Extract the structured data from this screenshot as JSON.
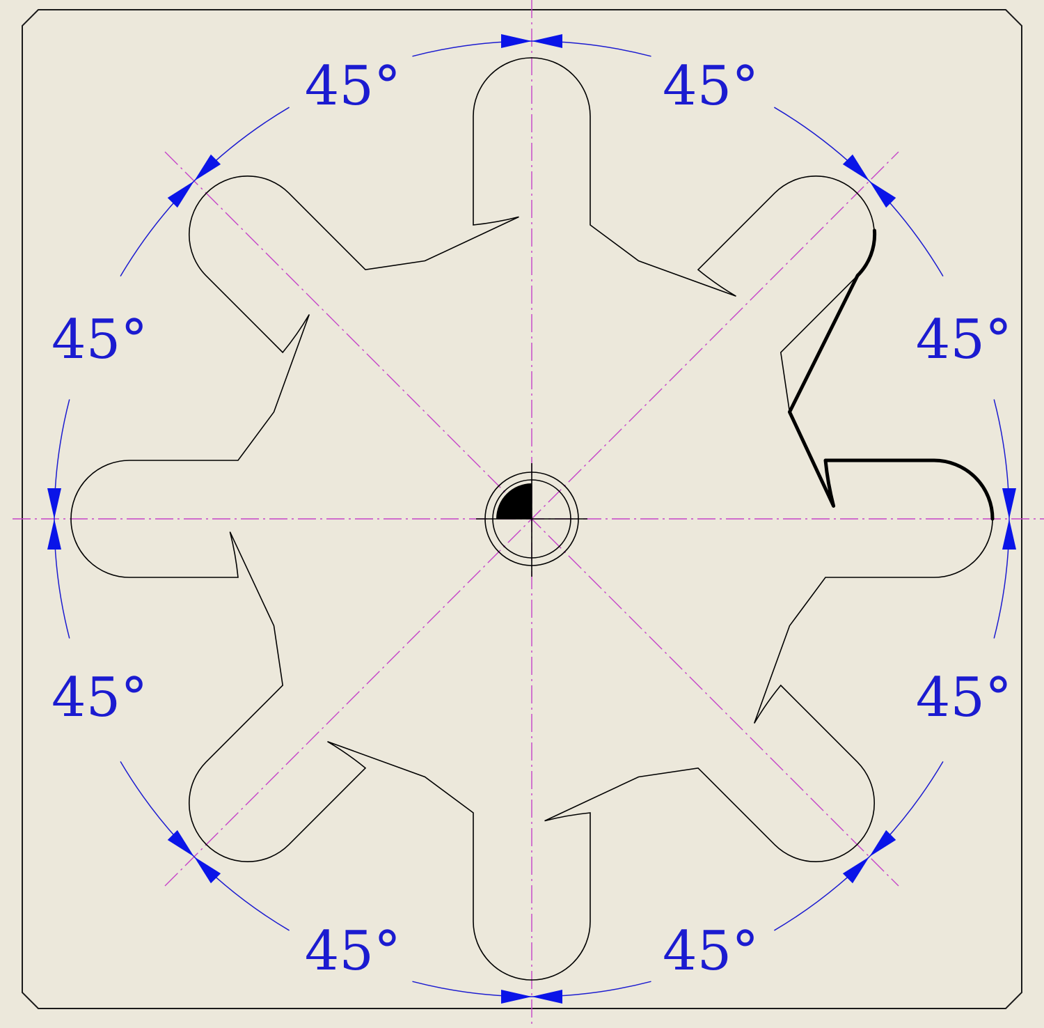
{
  "drawing": {
    "spoke_count": 8,
    "angle_step_deg": 45,
    "dimension_label": "45°"
  },
  "dimensions": [
    {
      "id": "dim-top-right",
      "label": "45°"
    },
    {
      "id": "dim-right-upper",
      "label": "45°"
    },
    {
      "id": "dim-right-lower",
      "label": "45°"
    },
    {
      "id": "dim-bottom-right",
      "label": "45°"
    },
    {
      "id": "dim-bottom-left",
      "label": "45°"
    },
    {
      "id": "dim-left-lower",
      "label": "45°"
    },
    {
      "id": "dim-left-upper",
      "label": "45°"
    },
    {
      "id": "dim-top-left",
      "label": "45°"
    }
  ],
  "colors": {
    "background": "#ECE8DB",
    "outline": "#000000",
    "centerline": "#C542C8",
    "dimension": "#1B1BD0"
  }
}
